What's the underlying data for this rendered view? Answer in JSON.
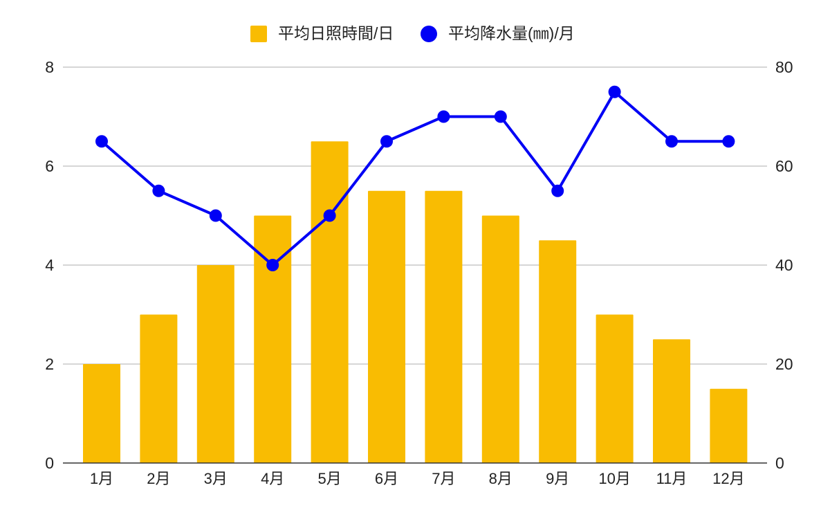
{
  "chart_data": {
    "type": "bar+line",
    "categories": [
      "1月",
      "2月",
      "3月",
      "4月",
      "5月",
      "6月",
      "7月",
      "8月",
      "9月",
      "10月",
      "11月",
      "12月"
    ],
    "series": [
      {
        "name": "平均日照時間/日",
        "type": "bar",
        "axis": "left",
        "color": "#F9BC02",
        "values": [
          2,
          3,
          4,
          5,
          6.5,
          5.5,
          5.5,
          5,
          4.5,
          3,
          2.5,
          1.5
        ]
      },
      {
        "name": "平均降水量(㎜)/月",
        "type": "line",
        "axis": "right",
        "color": "#0000F5",
        "values": [
          65,
          55,
          50,
          40,
          50,
          65,
          70,
          70,
          55,
          75,
          65,
          65
        ]
      }
    ],
    "left_axis": {
      "ylim": [
        0,
        8
      ],
      "ticks": [
        "0",
        "2",
        "4",
        "6",
        "8"
      ]
    },
    "right_axis": {
      "ylim": [
        0,
        80
      ],
      "ticks": [
        "0",
        "20",
        "40",
        "60",
        "80"
      ]
    },
    "legend_position": "top",
    "grid": true
  }
}
